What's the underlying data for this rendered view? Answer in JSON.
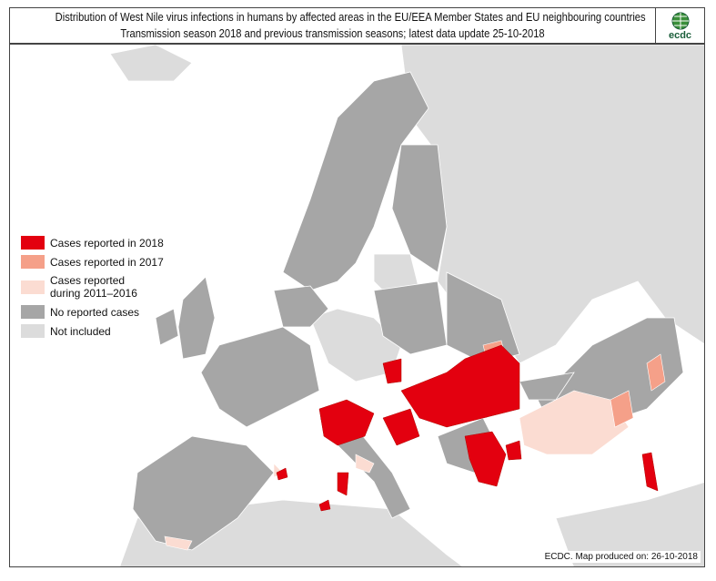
{
  "header": {
    "title_line1": "Distribution of West Nile virus infections in humans by affected areas in the EU/EEA Member States and EU neighbouring countries",
    "title_line2": "Transmission season 2018 and previous transmission seasons; latest data update 25-10-2018",
    "logo_text": "ecdc"
  },
  "legend": {
    "items": [
      {
        "label": "Cases reported in 2018",
        "color": "#e3000f"
      },
      {
        "label": "Cases reported in 2017",
        "color": "#f5a089"
      },
      {
        "label": "Cases reported during 2011–2016",
        "color": "#fbdcd2"
      },
      {
        "label": "No reported cases",
        "color": "#a6a6a6"
      },
      {
        "label": "Not included",
        "color": "#dcdcdc"
      }
    ]
  },
  "credit": "ECDC. Map produced on: 26-10-2018",
  "colors": {
    "sea": "#ffffff",
    "border": "#ffffff"
  }
}
